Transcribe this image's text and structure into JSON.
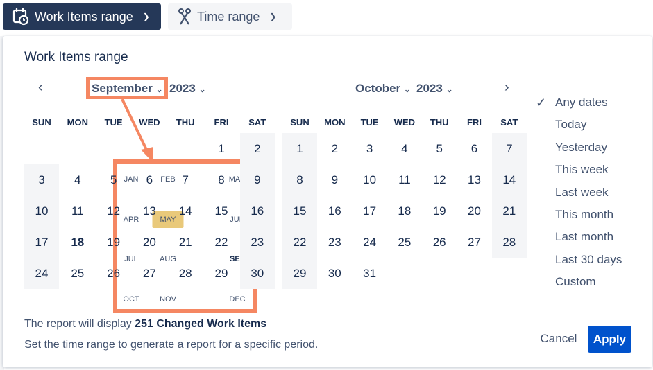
{
  "toolbar": {
    "work_items_range": "Work Items range",
    "time_range": "Time range"
  },
  "panel": {
    "title": "Work Items range"
  },
  "left_calendar": {
    "month": "September",
    "year": "2023",
    "weeks": [
      [
        "",
        "",
        "",
        "",
        "",
        "1",
        "2"
      ],
      [
        "3",
        "4",
        "5",
        "6",
        "7",
        "8",
        "9"
      ],
      [
        "10",
        "11",
        "12",
        "13",
        "14",
        "15",
        "16"
      ],
      [
        "17",
        "18",
        "19",
        "20",
        "21",
        "22",
        "23"
      ],
      [
        "24",
        "25",
        "26",
        "27",
        "28",
        "29",
        "30"
      ]
    ],
    "today": "18"
  },
  "right_calendar": {
    "month": "October",
    "year": "2023",
    "weeks": [
      [
        "1",
        "2",
        "3",
        "4",
        "5",
        "6",
        "7"
      ],
      [
        "8",
        "9",
        "10",
        "11",
        "12",
        "13",
        "14"
      ],
      [
        "15",
        "16",
        "17",
        "18",
        "19",
        "20",
        "21"
      ],
      [
        "22",
        "23",
        "24",
        "25",
        "26",
        "27",
        "28"
      ],
      [
        "29",
        "30",
        "31",
        "",
        "",
        "",
        ""
      ]
    ]
  },
  "weekdays": [
    "SUN",
    "MON",
    "TUE",
    "WED",
    "THU",
    "FRI",
    "SAT"
  ],
  "month_picker": {
    "months": [
      "JAN",
      "FEB",
      "MAR",
      "APR",
      "MAY",
      "JUN",
      "JUL",
      "AUG",
      "SEP",
      "OCT",
      "NOV",
      "DEC"
    ],
    "highlighted": "MAY",
    "current": "SEP",
    "highlight_color": "#e9c97a"
  },
  "annotation_color": "#f58762",
  "presets": {
    "selected": "Any dates",
    "items": [
      "Any dates",
      "Today",
      "Yesterday",
      "This week",
      "Last week",
      "This month",
      "Last month",
      "Last 30 days",
      "Custom"
    ]
  },
  "footer": {
    "prefix": "The report will display ",
    "count_text": "251 Changed Work Items",
    "hint": "Set the time range to generate a report for a specific period."
  },
  "buttons": {
    "cancel": "Cancel",
    "apply": "Apply"
  }
}
